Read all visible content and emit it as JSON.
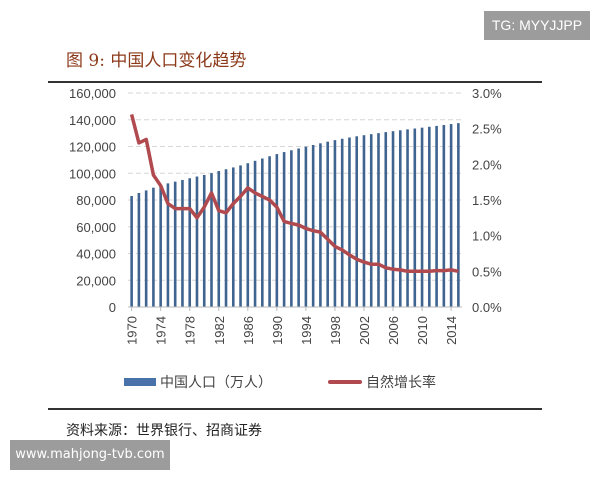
{
  "watermarks": {
    "top": "TG: MYYJJPP",
    "bottom": "www.mahjong-tvb.com"
  },
  "chart_data": {
    "type": "bar+line",
    "title": "图 9:  中国人口变化趋势",
    "source": "资料来源：世界银行、招商证券",
    "x": [
      1970,
      1971,
      1972,
      1973,
      1974,
      1975,
      1976,
      1977,
      1978,
      1979,
      1980,
      1981,
      1982,
      1983,
      1984,
      1985,
      1986,
      1987,
      1988,
      1989,
      1990,
      1991,
      1992,
      1993,
      1994,
      1995,
      1996,
      1997,
      1998,
      1999,
      2000,
      2001,
      2002,
      2003,
      2004,
      2005,
      2006,
      2007,
      2008,
      2009,
      2010,
      2011,
      2012,
      2013,
      2014,
      2015
    ],
    "x_tick_labels": [
      "1970",
      "1974",
      "1978",
      "1982",
      "1986",
      "1990",
      "1994",
      "1998",
      "2002",
      "2006",
      "2010",
      "2014"
    ],
    "y_left": {
      "range": [
        0,
        160000
      ],
      "ticks": [
        "0",
        "20,000",
        "40,000",
        "60,000",
        "80,000",
        "100,000",
        "120,000",
        "140,000",
        "160,000"
      ]
    },
    "y_right": {
      "range": [
        0,
        3.0
      ],
      "ticks": [
        "0.0%",
        "0.5%",
        "1.0%",
        "1.5%",
        "2.0%",
        "2.5%",
        "3.0%"
      ]
    },
    "grid": "horizontal dashed",
    "legend_placement": "bottom",
    "series": [
      {
        "name": "中国人口（万人）",
        "type": "bar",
        "axis": "left",
        "color": "#4a72aa",
        "values": [
          82992,
          85229,
          87177,
          89211,
          90859,
          92420,
          93717,
          94974,
          96259,
          97542,
          98705,
          100072,
          101654,
          103008,
          104357,
          105851,
          107507,
          109300,
          111026,
          112704,
          114333,
          115823,
          117171,
          118517,
          119850,
          121121,
          122389,
          123626,
          124761,
          125786,
          126743,
          127627,
          128453,
          129227,
          129988,
          130756,
          131448,
          132129,
          132802,
          133450,
          134091,
          134735,
          135404,
          136072,
          136782,
          137462
        ]
      },
      {
        "name": "自然增长率",
        "type": "line",
        "axis": "right",
        "color": "#b04a4f",
        "values": [
          2.7,
          2.3,
          2.35,
          1.85,
          1.7,
          1.45,
          1.38,
          1.38,
          1.38,
          1.25,
          1.4,
          1.6,
          1.35,
          1.32,
          1.45,
          1.55,
          1.67,
          1.6,
          1.55,
          1.5,
          1.4,
          1.2,
          1.17,
          1.15,
          1.1,
          1.07,
          1.05,
          0.95,
          0.85,
          0.8,
          0.73,
          0.67,
          0.63,
          0.6,
          0.6,
          0.55,
          0.53,
          0.52,
          0.5,
          0.5,
          0.5,
          0.5,
          0.51,
          0.51,
          0.52,
          0.5
        ]
      }
    ]
  }
}
